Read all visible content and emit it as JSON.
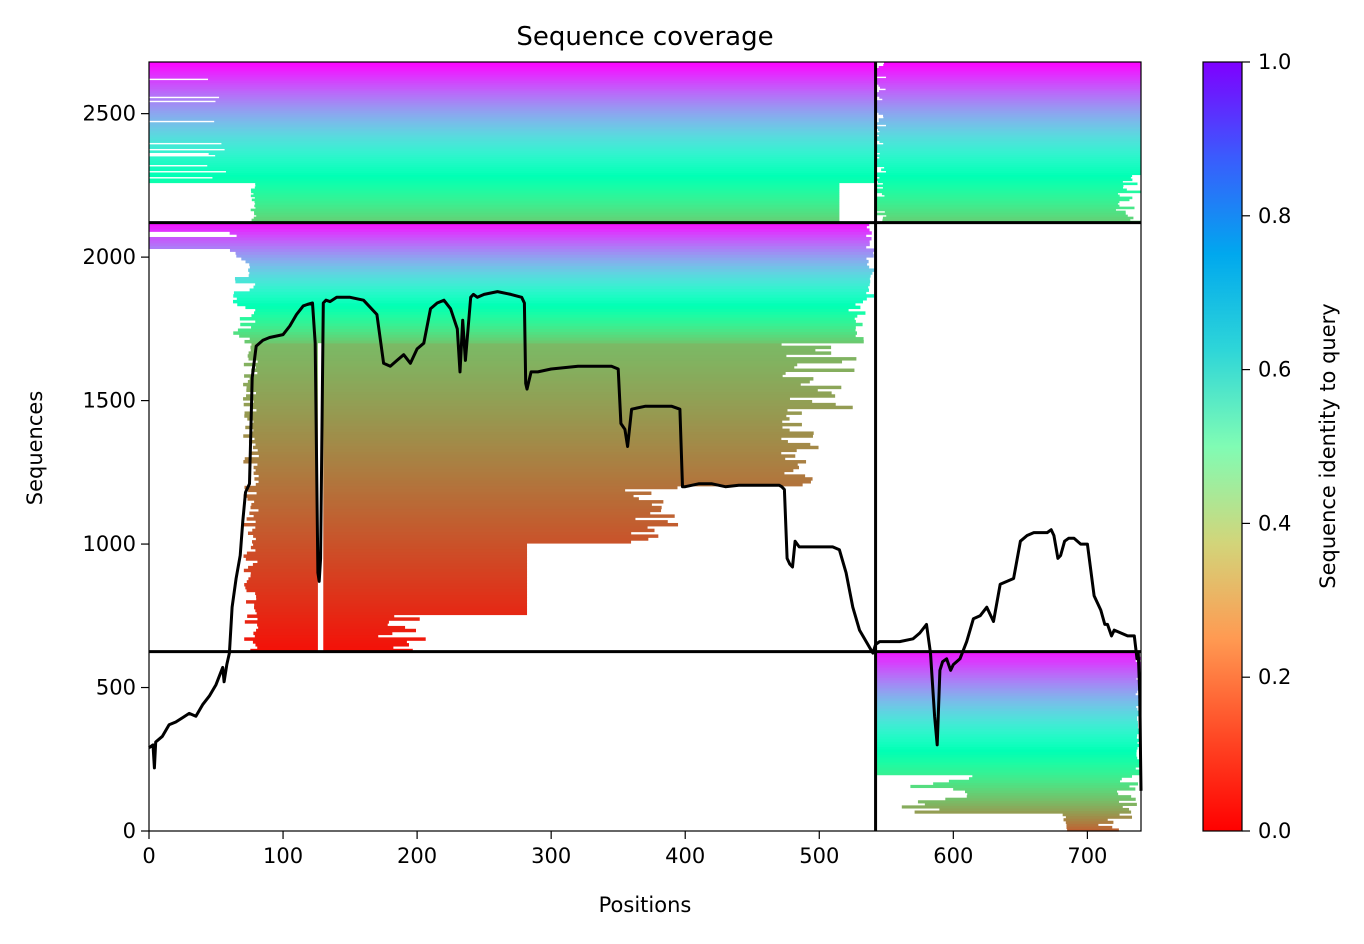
{
  "chart_data": {
    "type": "heatmap",
    "title": "Sequence coverage",
    "xlabel": "Positions",
    "ylabel": "Sequences",
    "xlim": [
      0,
      740
    ],
    "ylim": [
      0,
      2680
    ],
    "xticks": [
      0,
      100,
      200,
      300,
      400,
      500,
      600,
      700
    ],
    "yticks": [
      0,
      500,
      1000,
      1500,
      2000,
      2500
    ],
    "colorbar": {
      "label": "Sequence identity to query",
      "min": 0.0,
      "max": 1.0,
      "ticks": [
        0.0,
        0.2,
        0.4,
        0.6,
        0.8,
        1.0
      ],
      "colormap": "rainbow_r"
    },
    "dividers": {
      "x": [
        542
      ],
      "y": [
        625,
        2120
      ]
    },
    "blocks": [
      {
        "x": [
          0,
          542
        ],
        "y": [
          2120,
          2680
        ],
        "note": "pairs 1-542 with 2680..2120 rows; identity 0.3-1.0"
      },
      {
        "x": [
          542,
          740
        ],
        "y": [
          2120,
          2680
        ],
        "note": "identity 0.3-1.0"
      },
      {
        "x": [
          0,
          542
        ],
        "y": [
          625,
          2120
        ],
        "note": "identity 0.0-1.0"
      },
      {
        "x": [
          542,
          740
        ],
        "y": [
          0,
          625
        ],
        "note": "identity 0.0-1.0"
      }
    ],
    "coverage_line": {
      "x": [
        0,
        3,
        4,
        5,
        10,
        15,
        20,
        25,
        30,
        35,
        40,
        45,
        50,
        55,
        56,
        58,
        60,
        62,
        65,
        68,
        70,
        72,
        75,
        77,
        80,
        85,
        90,
        100,
        105,
        110,
        115,
        118,
        122,
        124,
        126,
        127,
        128,
        130,
        132,
        135,
        140,
        150,
        160,
        170,
        175,
        180,
        185,
        190,
        195,
        200,
        205,
        210,
        215,
        220,
        225,
        230,
        232,
        234,
        236,
        240,
        242,
        245,
        250,
        260,
        270,
        278,
        280,
        281,
        282,
        285,
        290,
        300,
        310,
        320,
        330,
        345,
        350,
        352,
        355,
        357,
        360,
        370,
        380,
        390,
        396,
        398,
        400,
        410,
        420,
        430,
        440,
        450,
        460,
        470,
        472,
        474,
        476,
        478,
        480,
        482,
        485,
        490,
        500,
        505,
        510,
        515,
        520,
        525,
        530,
        535,
        540,
        542,
        545,
        560,
        570,
        575,
        580,
        583,
        586,
        588,
        590,
        592,
        595,
        598,
        600,
        605,
        610,
        615,
        620,
        625,
        630,
        635,
        640,
        645,
        650,
        655,
        660,
        665,
        670,
        673,
        675,
        678,
        680,
        683,
        686,
        690,
        695,
        700,
        705,
        710,
        713,
        715,
        718,
        720,
        725,
        730,
        735,
        737,
        738,
        739,
        740
      ],
      "y": [
        290,
        300,
        220,
        310,
        330,
        370,
        380,
        395,
        410,
        400,
        440,
        470,
        510,
        570,
        520,
        580,
        620,
        780,
        880,
        960,
        1080,
        1180,
        1210,
        1580,
        1690,
        1710,
        1720,
        1730,
        1760,
        1800,
        1830,
        1835,
        1840,
        1700,
        900,
        870,
        950,
        1840,
        1850,
        1845,
        1860,
        1860,
        1850,
        1800,
        1630,
        1620,
        1640,
        1660,
        1630,
        1680,
        1700,
        1820,
        1840,
        1850,
        1820,
        1750,
        1600,
        1780,
        1640,
        1860,
        1870,
        1860,
        1870,
        1880,
        1870,
        1860,
        1840,
        1560,
        1540,
        1600,
        1600,
        1610,
        1615,
        1620,
        1620,
        1620,
        1610,
        1420,
        1400,
        1340,
        1470,
        1480,
        1480,
        1480,
        1470,
        1200,
        1200,
        1210,
        1210,
        1200,
        1205,
        1205,
        1205,
        1205,
        1200,
        1190,
        950,
        930,
        920,
        1010,
        990,
        990,
        990,
        990,
        990,
        980,
        900,
        780,
        700,
        660,
        620,
        650,
        660,
        660,
        670,
        690,
        720,
        620,
        400,
        300,
        560,
        590,
        600,
        560,
        580,
        600,
        660,
        740,
        750,
        780,
        730,
        860,
        870,
        880,
        1010,
        1030,
        1040,
        1040,
        1040,
        1050,
        1030,
        950,
        960,
        1010,
        1020,
        1020,
        1000,
        1000,
        820,
        770,
        720,
        720,
        680,
        700,
        690,
        680,
        680,
        600,
        620,
        480,
        140
      ]
    }
  }
}
